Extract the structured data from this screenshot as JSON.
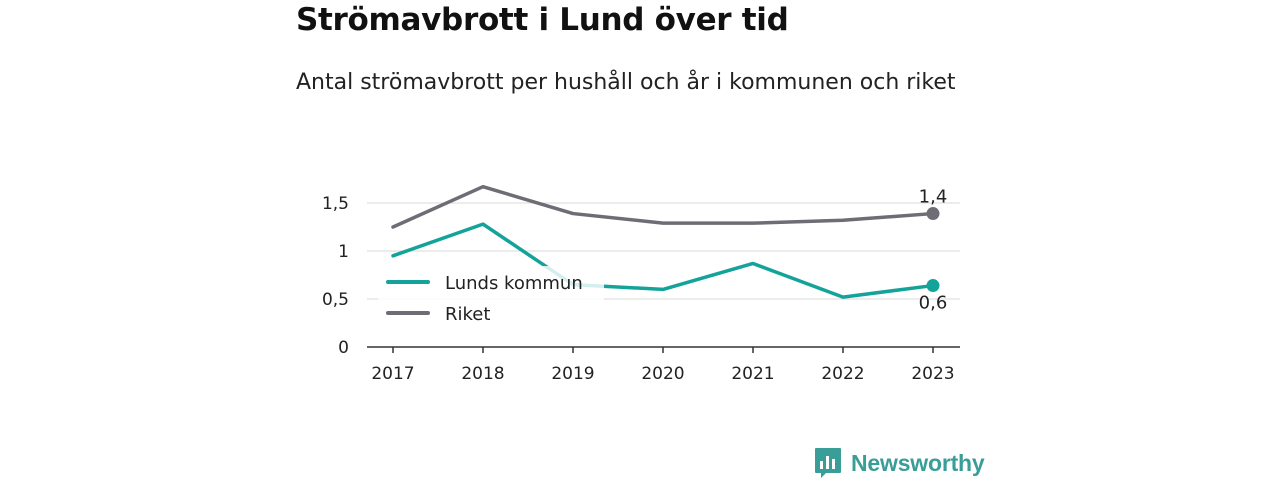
{
  "header": {
    "title": "Strömavbrott i Lund över tid",
    "subtitle": "Antal strömavbrott per hushåll och år i kommunen och riket"
  },
  "brand": {
    "name": "Newsworthy",
    "icon": "newsworthy-logo-icon",
    "color": "#3a9e98"
  },
  "chart_data": {
    "type": "line",
    "x": [
      "2017",
      "2018",
      "2019",
      "2020",
      "2021",
      "2022",
      "2023"
    ],
    "ylim": [
      0,
      2
    ],
    "yticks": [
      0,
      0.5,
      1,
      1.5
    ],
    "ytick_labels": [
      "0",
      "0,5",
      "1",
      "1,5"
    ],
    "grid": true,
    "legend_position": "left",
    "series": [
      {
        "name": "Lunds kommun",
        "color": "#14a39a",
        "values": [
          0.95,
          1.28,
          0.65,
          0.6,
          0.87,
          0.52,
          0.64
        ],
        "end_label": "0,6"
      },
      {
        "name": "Riket",
        "color": "#6e6d75",
        "values": [
          1.25,
          1.67,
          1.39,
          1.29,
          1.29,
          1.32,
          1.39
        ],
        "end_label": "1,4"
      }
    ]
  }
}
